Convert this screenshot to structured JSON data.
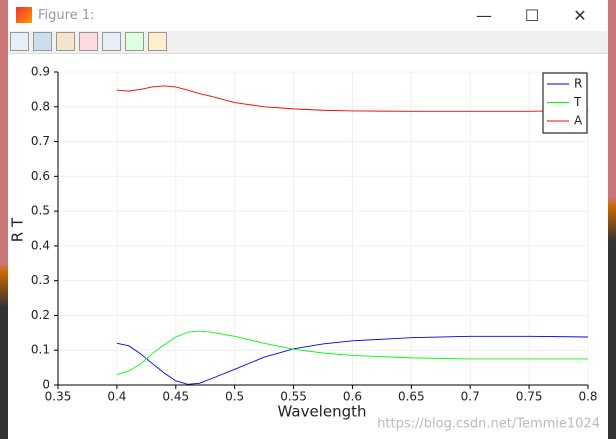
{
  "window": {
    "title": "Figure 1:"
  },
  "watermark": "https://blog.csdn.net/Temmie1024",
  "chart_data": {
    "type": "line",
    "xlabel": "Wavelength",
    "ylabel": "R T",
    "x": [
      0.4,
      0.41,
      0.42,
      0.43,
      0.44,
      0.45,
      0.46,
      0.47,
      0.48,
      0.5,
      0.525,
      0.55,
      0.575,
      0.6,
      0.65,
      0.7,
      0.75,
      0.8
    ],
    "series": [
      {
        "name": "R",
        "color": "#0000ff",
        "values": [
          0.12,
          0.113,
          0.09,
          0.062,
          0.035,
          0.012,
          0.002,
          0.005,
          0.018,
          0.045,
          0.08,
          0.104,
          0.118,
          0.127,
          0.136,
          0.14,
          0.14,
          0.138
        ]
      },
      {
        "name": "T",
        "color": "#00ff00",
        "values": [
          0.03,
          0.04,
          0.06,
          0.09,
          0.115,
          0.138,
          0.152,
          0.155,
          0.152,
          0.14,
          0.12,
          0.103,
          0.092,
          0.085,
          0.078,
          0.075,
          0.075,
          0.075
        ]
      },
      {
        "name": "A",
        "color": "#ff0000",
        "values": [
          0.848,
          0.845,
          0.85,
          0.857,
          0.86,
          0.857,
          0.848,
          0.838,
          0.83,
          0.812,
          0.8,
          0.794,
          0.79,
          0.788,
          0.787,
          0.787,
          0.787,
          0.79
        ]
      }
    ],
    "xlim": [
      0.35,
      0.8
    ],
    "xticks": [
      0.35,
      0.4,
      0.45,
      0.5,
      0.55,
      0.6,
      0.65,
      0.7,
      0.75,
      0.8
    ],
    "ylim": [
      0,
      0.9
    ],
    "yticks": [
      0,
      0.1,
      0.2,
      0.3,
      0.4,
      0.5,
      0.6,
      0.7,
      0.8,
      0.9
    ],
    "grid": true,
    "legend": "upper-right"
  }
}
